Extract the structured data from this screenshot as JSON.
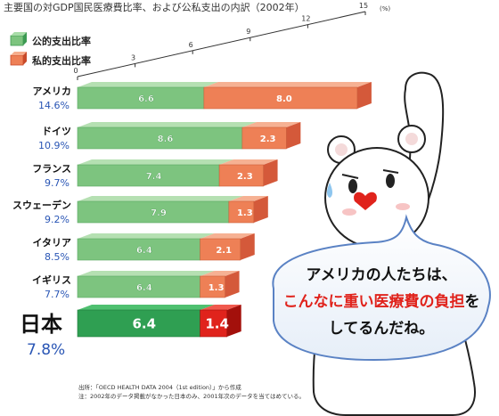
{
  "title": "主要国の対GDP国民医療費比率、および公私支出の内訳（2002年）",
  "x_axis": {
    "unit": "(%)",
    "ticks": [
      "0",
      "3",
      "6",
      "9",
      "12",
      "15"
    ]
  },
  "legend": {
    "public": "公的支出比率",
    "private": "私的支出比率"
  },
  "colors": {
    "public": "#7dc47f",
    "public_dark": "#2f9f52",
    "private": "#ee8056",
    "private_dark": "#d93b2b",
    "japan_private": "#e0231c",
    "rank_blue": "#2a56b5"
  },
  "chart_data": {
    "type": "bar",
    "stacked": true,
    "orientation": "horizontal",
    "title": "主要国の対GDP国民医療費比率、および公私支出の内訳（2002年）",
    "xlim": [
      0,
      15
    ],
    "x_unit": "(%)",
    "categories": [
      "アメリカ",
      "ドイツ",
      "フランス",
      "スウェーデン",
      "イタリア",
      "イギリス",
      "日本"
    ],
    "totals": [
      "14.6%",
      "10.9%",
      "9.7%",
      "9.2%",
      "8.5%",
      "7.7%",
      "7.8%"
    ],
    "series": [
      {
        "name": "公的支出比率",
        "values": [
          6.6,
          8.6,
          7.4,
          7.9,
          6.4,
          6.4,
          6.4
        ]
      },
      {
        "name": "私的支出比率",
        "values": [
          8.0,
          2.3,
          2.3,
          1.3,
          2.1,
          1.3,
          1.4
        ]
      }
    ],
    "legend_position": "top-left"
  },
  "speech_bubble": {
    "line1": "アメリカの人たちは、",
    "line2a": "こんなに重い医療費の負担",
    "line2b": "を",
    "line3": "してるんだね。"
  },
  "footnote": {
    "line1": "出所：「OECD HEALTH DATA 2004（1st edition）」から作成",
    "line2": "注：2002年のデータ掲載がなかった日本のみ、2001年次のデータを当てはめている。"
  }
}
